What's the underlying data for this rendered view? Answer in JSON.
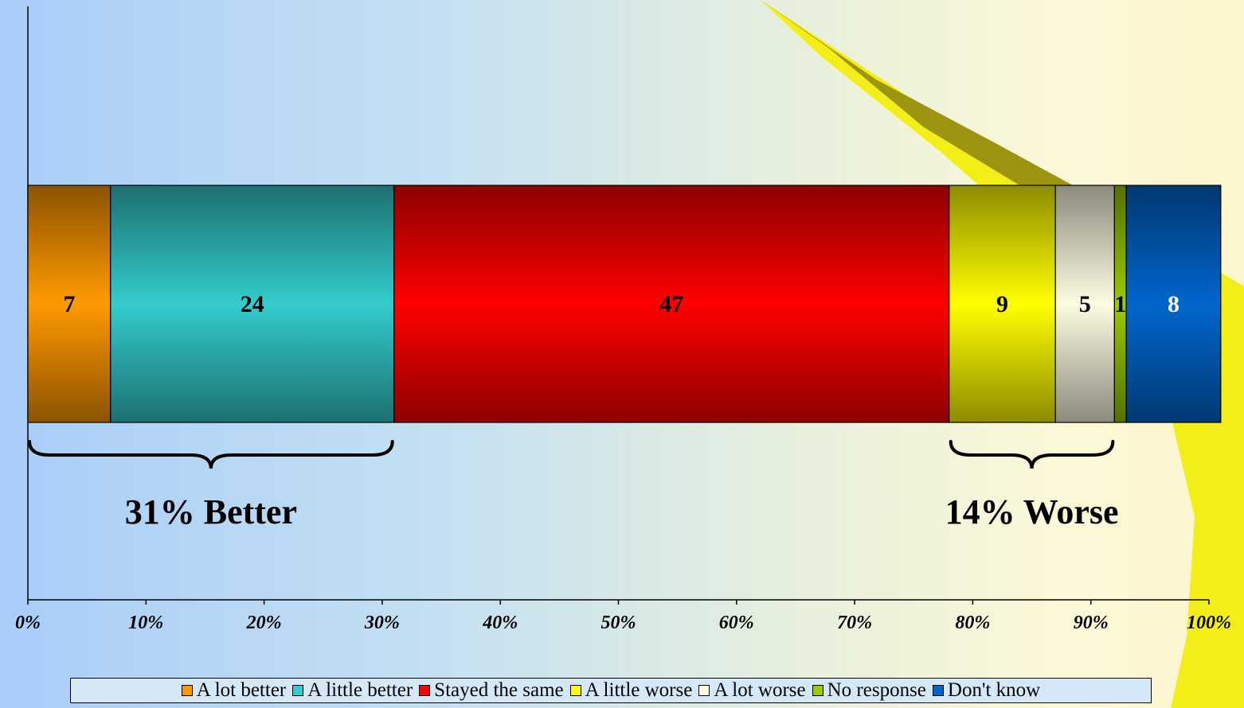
{
  "chart_data": {
    "type": "bar",
    "orientation": "horizontal-stacked-100",
    "categories": [
      ""
    ],
    "series": [
      {
        "name": "A lot better",
        "values": [
          7
        ],
        "color": "#ff9900"
      },
      {
        "name": "A little better",
        "values": [
          24
        ],
        "color": "#33cccc"
      },
      {
        "name": "Stayed the same",
        "values": [
          47
        ],
        "color": "#ff0000"
      },
      {
        "name": "A little worse",
        "values": [
          9
        ],
        "color": "#ffff00"
      },
      {
        "name": "A lot worse",
        "values": [
          5
        ],
        "color": "#fdfbe2"
      },
      {
        "name": "No response",
        "values": [
          1
        ],
        "color": "#99cc00"
      },
      {
        "name": "Don't know",
        "values": [
          8
        ],
        "color": "#0066cc"
      }
    ],
    "data_label_colors": [
      "#000000",
      "#000000",
      "#000000",
      "#000000",
      "#000000",
      "#000000",
      "#ffffff"
    ],
    "xlim": [
      0,
      100
    ],
    "x_ticks": [
      "0%",
      "10%",
      "20%",
      "30%",
      "40%",
      "50%",
      "60%",
      "70%",
      "80%",
      "90%",
      "100%"
    ],
    "annotations": [
      {
        "text": "31% Better",
        "spans": [
          0,
          31
        ]
      },
      {
        "text": "14% Worse",
        "spans": [
          78,
          92
        ]
      }
    ],
    "grid": false,
    "legend_position": "bottom"
  }
}
